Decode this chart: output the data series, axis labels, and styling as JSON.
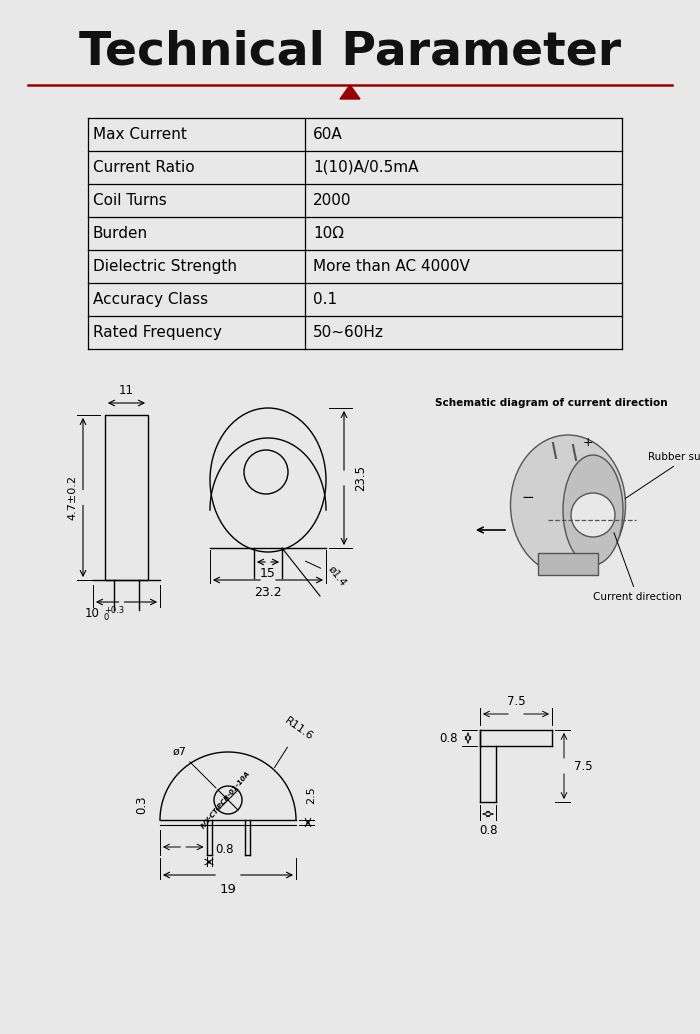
{
  "title": "Technical Parameter",
  "bg_color": "#e8e8e8",
  "title_color": "#111111",
  "red_color": "#990000",
  "table_data": [
    [
      "Max Current",
      "60A"
    ],
    [
      "Current Ratio",
      "1(10)A/0.5mA"
    ],
    [
      "Coil Turns",
      "2000"
    ],
    [
      "Burden",
      "10Ω"
    ],
    [
      "Dielectric Strength",
      "More than AC 4000V"
    ],
    [
      "Accuracy Class",
      "0.1"
    ],
    [
      "Rated Frequency",
      "50~60Hz"
    ]
  ],
  "dim_labels": {
    "side_height": "4.7±0.2",
    "top_width": "11",
    "bottom_width_main": "10",
    "bottom_width_sup": "+0.3\n0",
    "front_height": "23.5",
    "front_inner": "15",
    "front_outer": "23.2",
    "pin_dia": "ø1.4",
    "bottom_r": "R11.6",
    "bottom_hole": "ø7",
    "bottom_pin_w": "0.8",
    "bottom_total": "19",
    "bottom_side": "0.3",
    "corner_h_top": "0.8",
    "corner_h_bot": "0.8",
    "corner_v_top": "7.5",
    "corner_v_right": "7.5",
    "corner_pin_h": "2.5"
  },
  "schematic_labels": {
    "title": "Schematic diagram of current direction",
    "plus": "+",
    "minus": "−",
    "rubber": "Rubber surface",
    "current": "Current direction"
  }
}
